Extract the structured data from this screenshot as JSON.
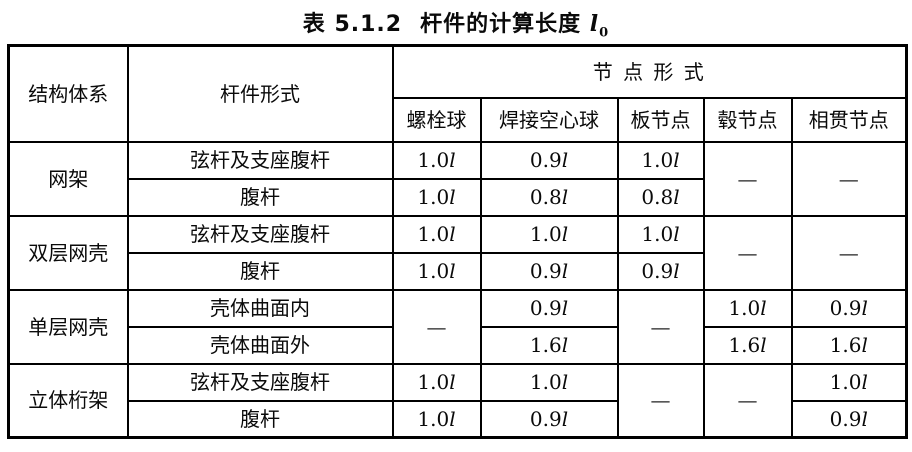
{
  "title": {
    "label": "表 5.1.2",
    "name": "杆件的计算长度",
    "symbol": "l",
    "subscript": "0"
  },
  "table": {
    "header": {
      "col1": "结构体系",
      "col2": "杆件形式",
      "group": "节 点 形 式",
      "subcols": [
        "螺栓球",
        "焊接空心球",
        "板节点",
        "毂节点",
        "相贯节点"
      ]
    },
    "rows": [
      {
        "system": "网架",
        "member": "弦杆及支座腹杆",
        "bolt": "1.0l",
        "weld": "0.9l",
        "plate": "1.0l",
        "hub": "—",
        "tube": "—"
      },
      {
        "member": "腹杆",
        "bolt": "1.0l",
        "weld": "0.8l",
        "plate": "0.8l"
      },
      {
        "system": "双层网壳",
        "member": "弦杆及支座腹杆",
        "bolt": "1.0l",
        "weld": "1.0l",
        "plate": "1.0l",
        "hub": "—",
        "tube": "—"
      },
      {
        "member": "腹杆",
        "bolt": "1.0l",
        "weld": "0.9l",
        "plate": "0.9l"
      },
      {
        "system": "单层网壳",
        "member": "壳体曲面内",
        "bolt": "—",
        "weld": "0.9l",
        "plate": "—",
        "hub": "1.0l",
        "tube": "0.9l"
      },
      {
        "member": "壳体曲面外",
        "weld": "1.6l",
        "hub": "1.6l",
        "tube": "1.6l"
      },
      {
        "system": "立体桁架",
        "member": "弦杆及支座腹杆",
        "bolt": "1.0l",
        "weld": "1.0l",
        "plate": "—",
        "hub": "—",
        "tube": "1.0l"
      },
      {
        "member": "腹杆",
        "bolt": "1.0l",
        "weld": "0.9l",
        "tube": "0.9l"
      }
    ]
  }
}
